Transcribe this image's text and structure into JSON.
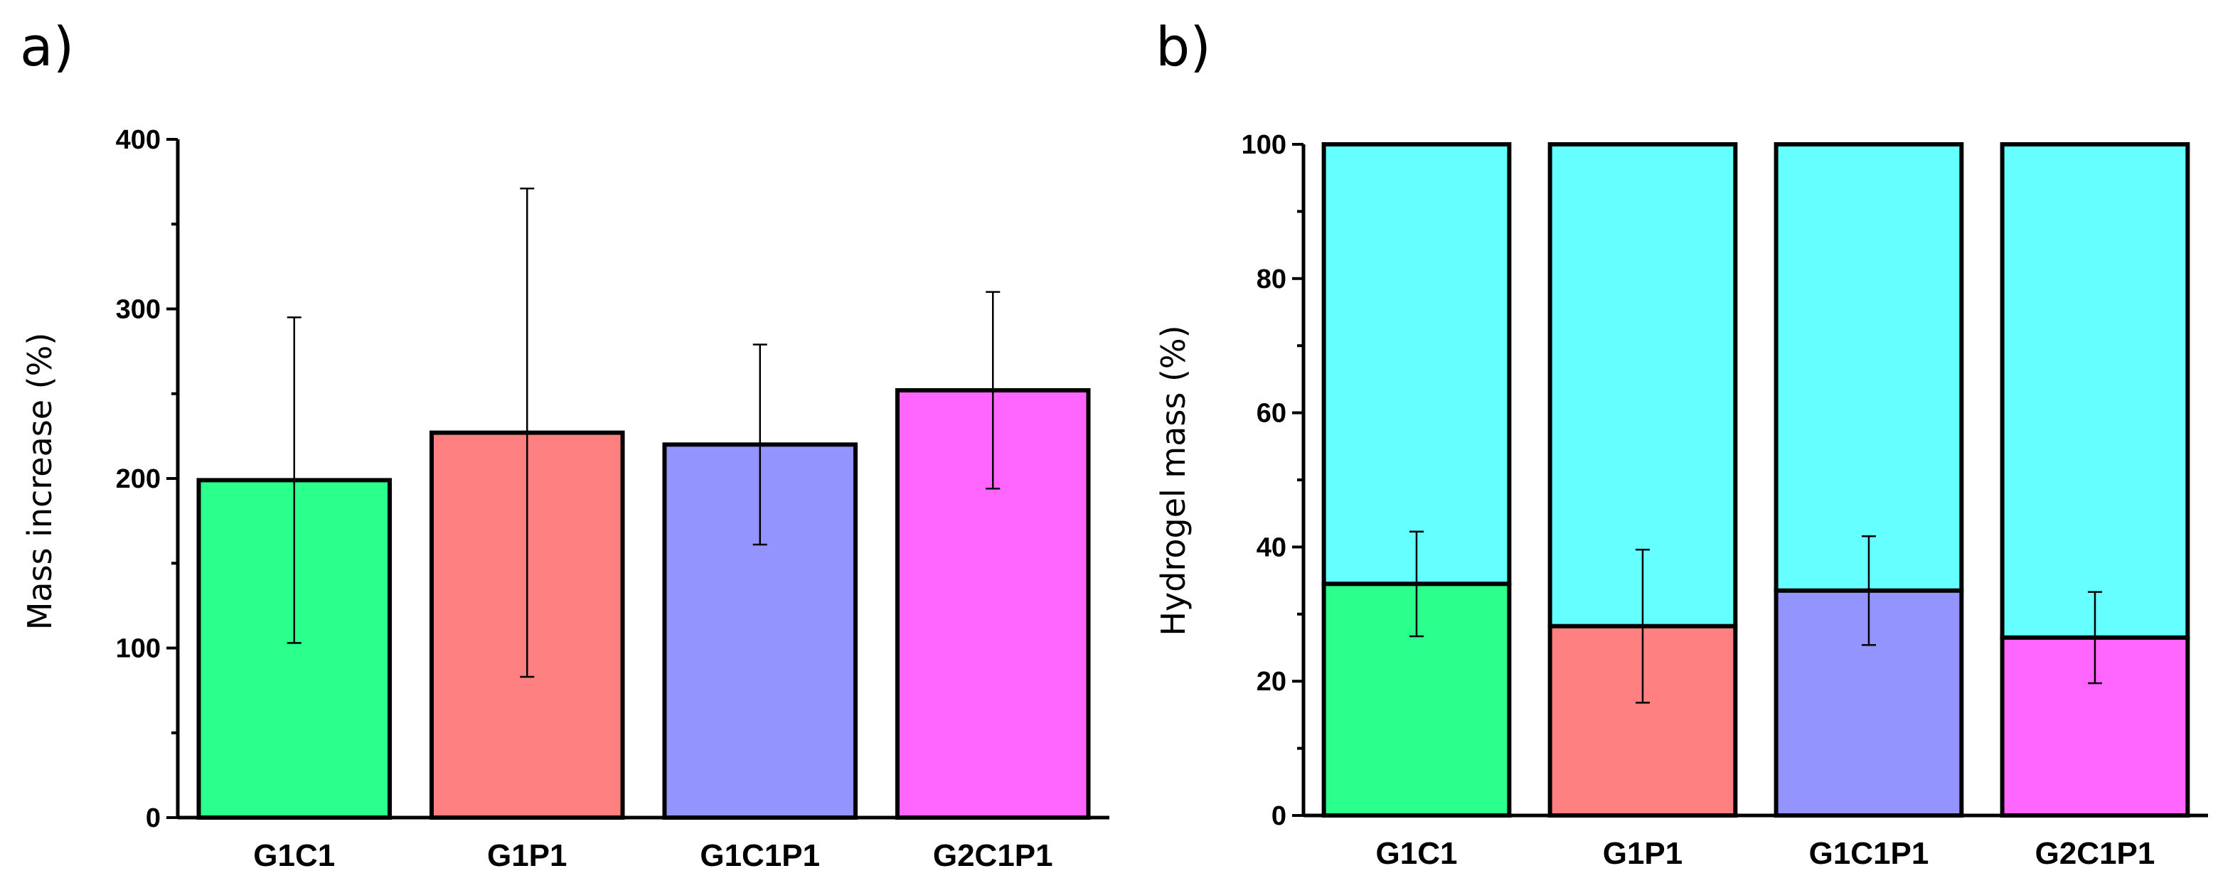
{
  "chart_data": [
    {
      "panel": "a)",
      "type": "bar",
      "title": "",
      "xlabel": "",
      "ylabel": "Mass increase (%)",
      "ylim": [
        0,
        400
      ],
      "yticks": [
        "0",
        "100",
        "200",
        "300",
        "400"
      ],
      "categories": [
        "G1C1",
        "G1P1",
        "G1C1P1",
        "G2C1P1"
      ],
      "values": [
        199,
        227,
        220,
        252
      ],
      "errors": [
        96,
        144,
        59,
        58
      ],
      "colors": [
        "#2bff8c",
        "#ff8080",
        "#9494ff",
        "#ff66ff"
      ]
    },
    {
      "panel": "b)",
      "type": "bar",
      "stacked": true,
      "title": "",
      "xlabel": "",
      "ylabel": "Hydrogel mass (%)",
      "ylim": [
        0,
        100
      ],
      "yticks": [
        "0",
        "20",
        "40",
        "60",
        "80",
        "100"
      ],
      "categories": [
        "G1C1",
        "G1P1",
        "G1C1P1",
        "G2C1P1"
      ],
      "series": [
        {
          "name": "bottom",
          "values": [
            34.5,
            28.2,
            33.5,
            26.5
          ],
          "errors": [
            7.8,
            11.4,
            8.1,
            6.8
          ],
          "colors": [
            "#2bff8c",
            "#ff8080",
            "#9494ff",
            "#ff66ff"
          ]
        },
        {
          "name": "top",
          "values": [
            65.5,
            71.8,
            66.5,
            73.5
          ],
          "color": "#66ffff"
        }
      ]
    }
  ]
}
